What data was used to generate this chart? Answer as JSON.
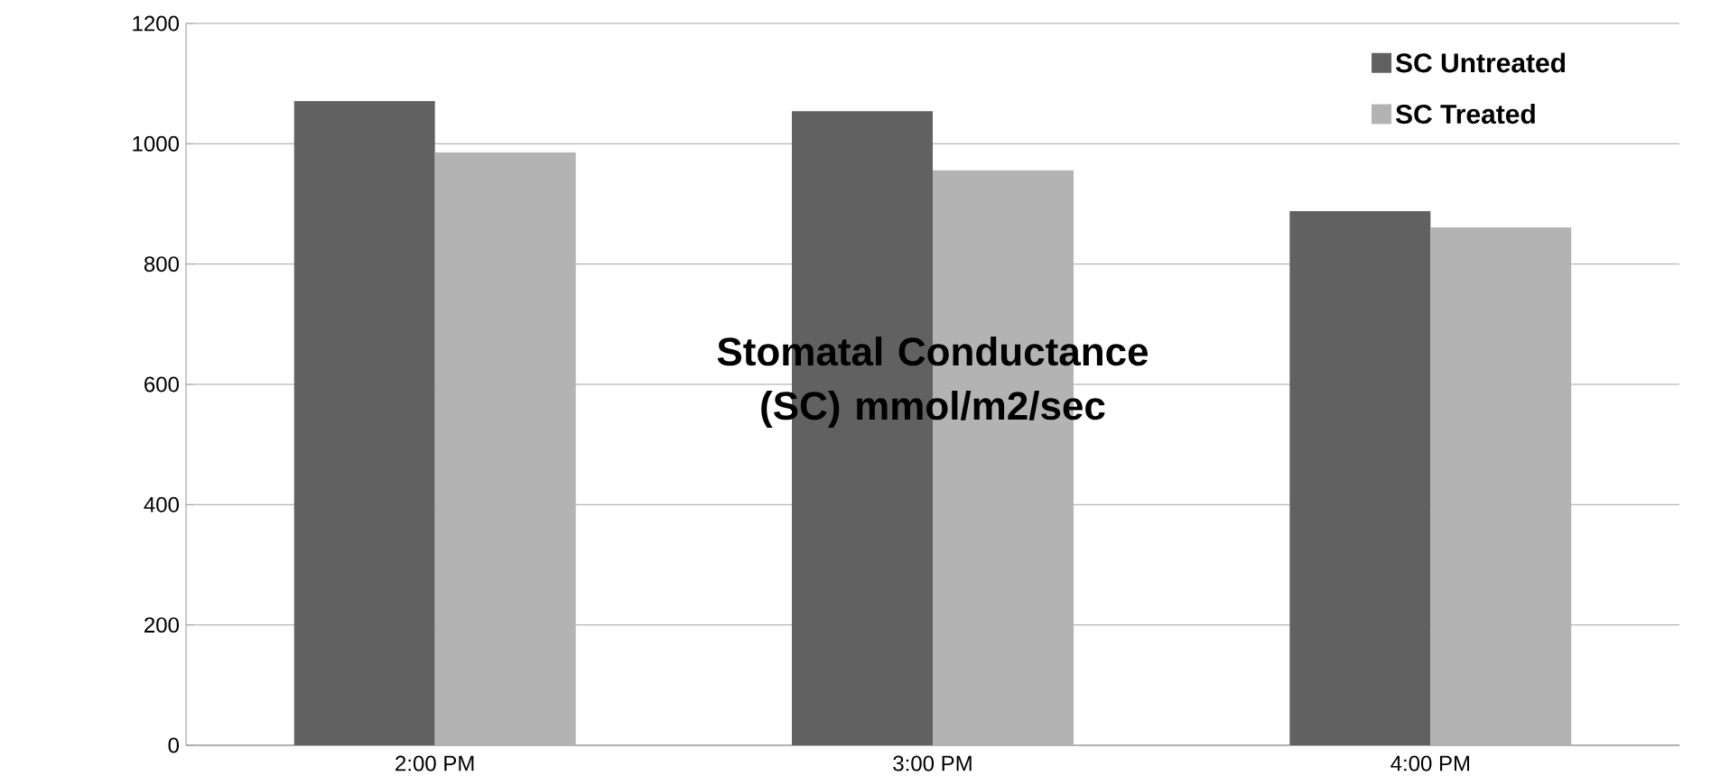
{
  "chart_data": {
    "type": "bar",
    "title": "Stomatal Conductance (SC) mmol/m2/sec",
    "categories": [
      "2:00 PM",
      "3:00 PM",
      "4:00 PM"
    ],
    "series": [
      {
        "name": "SC Untreated",
        "color": "#616161",
        "values": [
          1071,
          1054,
          888
        ]
      },
      {
        "name": "SC Treated",
        "color": "#b3b3b3",
        "values": [
          986,
          956,
          861
        ]
      }
    ],
    "ylim": [
      0,
      1200
    ],
    "yticks": [
      0,
      200,
      400,
      600,
      800,
      1000,
      1200
    ],
    "grid": "y",
    "legend": "top right"
  }
}
